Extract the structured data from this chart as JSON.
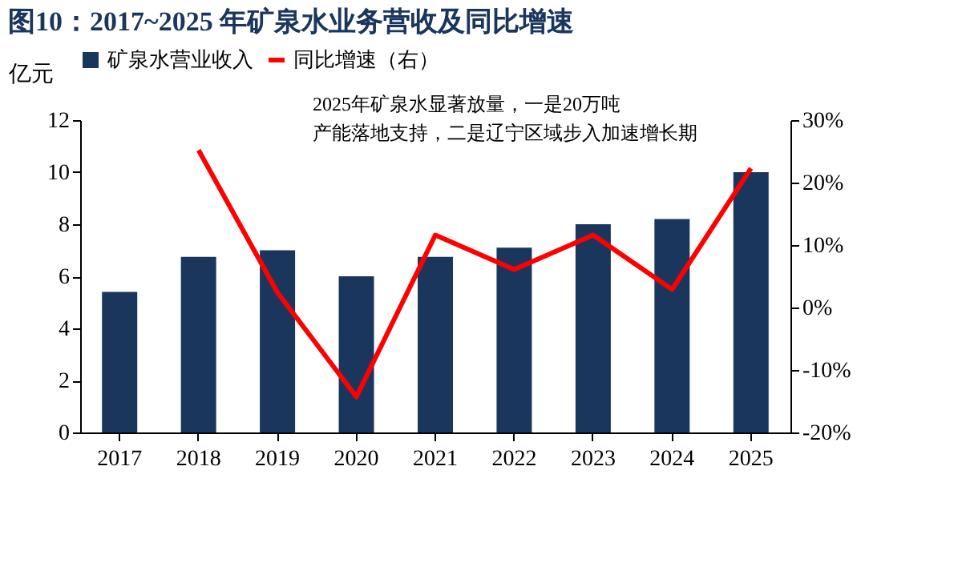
{
  "chart_data": {
    "type": "bar",
    "title": "图10：2017~2025 年矿泉水业务营收及同比增速",
    "categories": [
      "2017",
      "2018",
      "2019",
      "2020",
      "2021",
      "2022",
      "2023",
      "2024",
      "2025"
    ],
    "ylabel": "亿元",
    "series": [
      {
        "name": "矿泉水营业收入",
        "color": "#1b365d",
        "values": [
          5.4,
          6.75,
          7.0,
          6.0,
          6.75,
          7.1,
          8.0,
          8.2,
          10.0
        ]
      },
      {
        "name": "同比增速（右）",
        "type": "line",
        "axis": "y2",
        "color": "#ff0000",
        "values": [
          null,
          25.2,
          2.4,
          -14.3,
          11.6,
          6.1,
          11.6,
          2.9,
          22.3
        ]
      }
    ],
    "ylim": [
      0,
      12
    ],
    "yticks": [
      0,
      2,
      4,
      6,
      8,
      10,
      12
    ],
    "y2lim": [
      -20,
      30
    ],
    "y2ticks": [
      {
        "value": -20,
        "label": "-20%"
      },
      {
        "value": -10,
        "label": "-10%"
      },
      {
        "value": 0,
        "label": "0%"
      },
      {
        "value": 10,
        "label": "10%"
      },
      {
        "value": 20,
        "label": "20%"
      },
      {
        "value": 30,
        "label": "30%"
      }
    ],
    "annotations": [
      "2025年矿泉水显著放量，一是20万吨产能落地支持，二是辽宁区域步入加速增长期"
    ],
    "legend": "top",
    "grid": false
  }
}
